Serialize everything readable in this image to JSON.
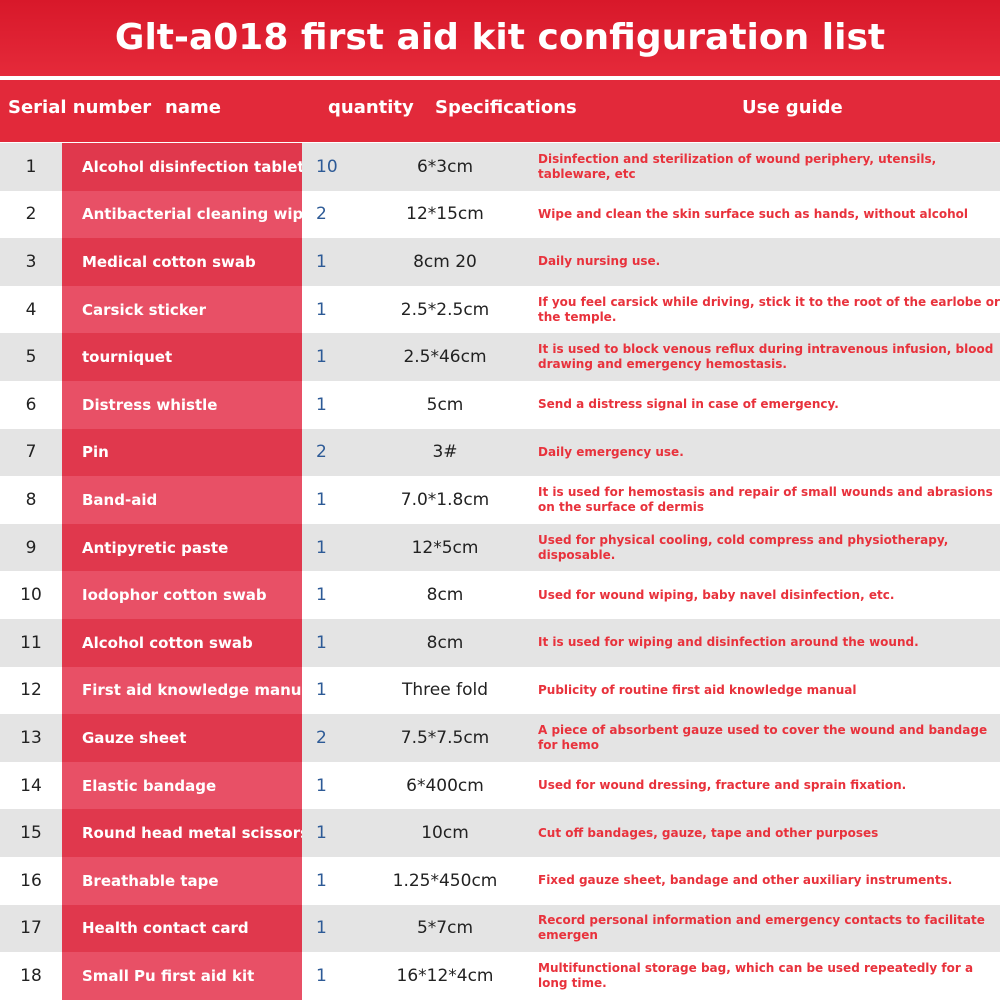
{
  "header": {
    "title": "Glt-a018 first aid kit configuration list"
  },
  "table": {
    "columns": [
      "Serial number",
      "name",
      "quantity",
      "Specifications",
      "Use guide"
    ],
    "rows": [
      [
        "1",
        "Alcohol disinfection tablet",
        "10",
        "6*3cm",
        "Disinfection and sterilization of wound periphery, utensils, tableware, etc"
      ],
      [
        "2",
        "Antibacterial cleaning wipes",
        "2",
        "12*15cm",
        "Wipe and clean the skin surface such as hands, without alcohol"
      ],
      [
        "3",
        "Medical cotton swab",
        "1",
        "8cm   20",
        "Daily nursing use."
      ],
      [
        "4",
        "Carsick sticker",
        "1",
        "2.5*2.5cm",
        "If you feel carsick while driving, stick it to the root of the earlobe or the temple."
      ],
      [
        "5",
        "tourniquet",
        "1",
        "2.5*46cm",
        "It is used to block venous reflux during intravenous infusion, blood drawing and emergency hemostasis."
      ],
      [
        "6",
        "Distress whistle",
        "1",
        "5cm",
        "Send a distress signal in case of emergency."
      ],
      [
        "7",
        "Pin",
        "2",
        "3#",
        "Daily emergency use."
      ],
      [
        "8",
        "Band-aid",
        "1",
        "7.0*1.8cm",
        "It is used for hemostasis and repair of small wounds and abrasions on the surface of dermis"
      ],
      [
        "9",
        "Antipyretic paste",
        "1",
        "12*5cm",
        "Used for physical cooling, cold compress and physiotherapy, disposable."
      ],
      [
        "10",
        "Iodophor cotton swab",
        "1",
        "8cm",
        "Used for wound wiping, baby navel disinfection, etc."
      ],
      [
        "11",
        "Alcohol cotton swab",
        "1",
        "8cm",
        "It is used for wiping and disinfection around the wound."
      ],
      [
        "12",
        "First aid knowledge manual",
        "1",
        "Three fold",
        "Publicity of routine first aid knowledge manual"
      ],
      [
        "13",
        "Gauze sheet",
        "2",
        "7.5*7.5cm",
        "A piece of absorbent gauze used to cover the wound and bandage for hemo"
      ],
      [
        "14",
        "Elastic bandage",
        "1",
        "6*400cm",
        "Used for wound dressing, fracture and sprain fixation."
      ],
      [
        "15",
        "Round head metal scissors",
        "1",
        "10cm",
        "Cut off bandages, gauze, tape and other purposes"
      ],
      [
        "16",
        "Breathable tape",
        "1",
        "1.25*450cm",
        "Fixed gauze sheet, bandage and other auxiliary instruments."
      ],
      [
        "17",
        "Health contact card",
        "1",
        "5*7cm",
        "Record personal information and emergency contacts to facilitate emergen"
      ],
      [
        "18",
        "Small Pu first aid kit",
        "1",
        "16*12*4cm",
        "Multifunctional storage bag, which can be used repeatedly for a long time."
      ]
    ]
  }
}
